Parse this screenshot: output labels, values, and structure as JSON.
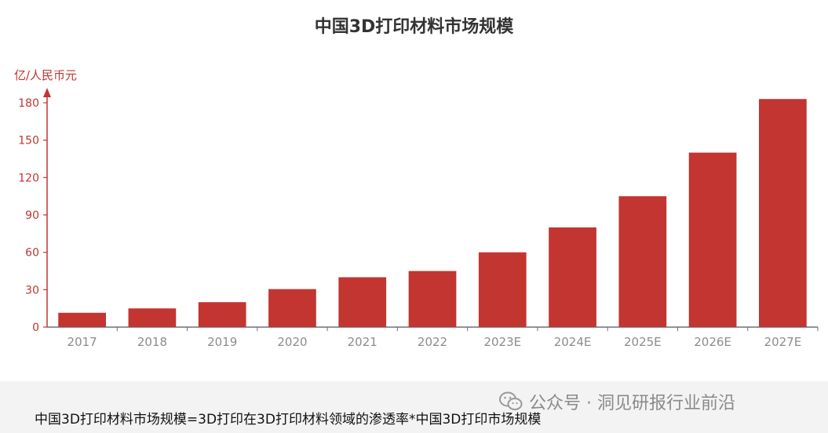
{
  "chart_data": {
    "type": "bar",
    "title": "中国3D打印材料市场规模",
    "ylabel": "亿/人民币元",
    "xlabel": "",
    "categories": [
      "2017",
      "2018",
      "2019",
      "2020",
      "2021",
      "2022",
      "2023E",
      "2024E",
      "2025E",
      "2026E",
      "2027E"
    ],
    "values": [
      11.5,
      15,
      20,
      30.5,
      40,
      45,
      60,
      80,
      105,
      140,
      183
    ],
    "ylim": [
      0,
      180
    ],
    "yticks": [
      "0",
      "30",
      "60",
      "90",
      "120",
      "150",
      "180"
    ],
    "grid": false,
    "legend": "none",
    "bar_color": "#c23531",
    "axis_color": "#c23531"
  },
  "caption": "中国3D打印材料市场规模=3D打印在3D打印材料领域的渗透率*中国3D打印市场规模",
  "watermark": {
    "icon": "wechat-icon",
    "text": "公众号 · 洞见研报行业前沿"
  }
}
